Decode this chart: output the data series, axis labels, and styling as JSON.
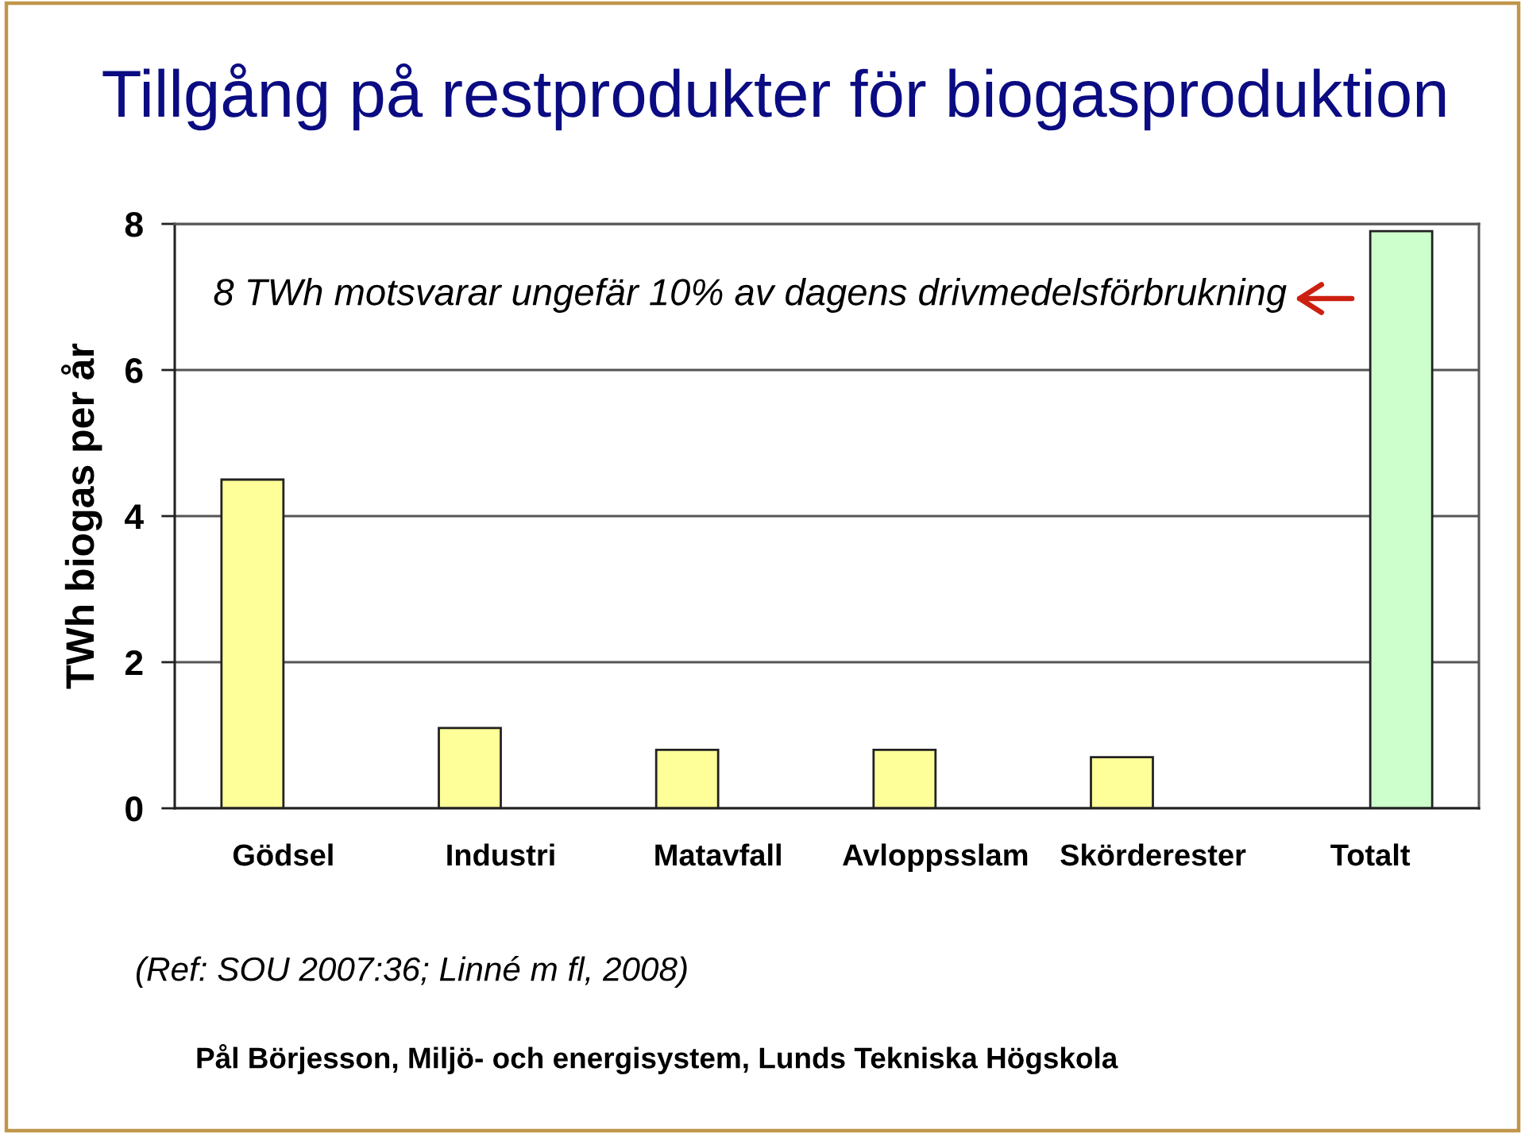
{
  "chart_data": {
    "type": "bar",
    "title": "Tillgång på restprodukter för biogasproduktion",
    "ylabel": "TWh biogas per år",
    "categories": [
      "Gödsel",
      "Industri",
      "Matavfall",
      "Avloppsslam",
      "Skörderester",
      "Totalt"
    ],
    "series": [
      {
        "color": "#ffff99",
        "values": [
          4.5,
          1.1,
          0.8,
          0.8,
          0.7,
          null
        ]
      },
      {
        "color": "#ccffcc",
        "values": [
          null,
          null,
          null,
          null,
          null,
          7.9
        ]
      }
    ],
    "ylim": [
      0,
      8
    ],
    "yticks": [
      0,
      2,
      4,
      6,
      8
    ],
    "grid": "y",
    "annotations": [
      "8 TWh motsvarar ungefär 10% av dagens drivmedelsförbrukning",
      "(Ref: SOU 2007:36; Linné m fl, 2008)",
      "Pål Börjesson, Miljö- och energisystem, Lunds Tekniska Högskola"
    ]
  }
}
